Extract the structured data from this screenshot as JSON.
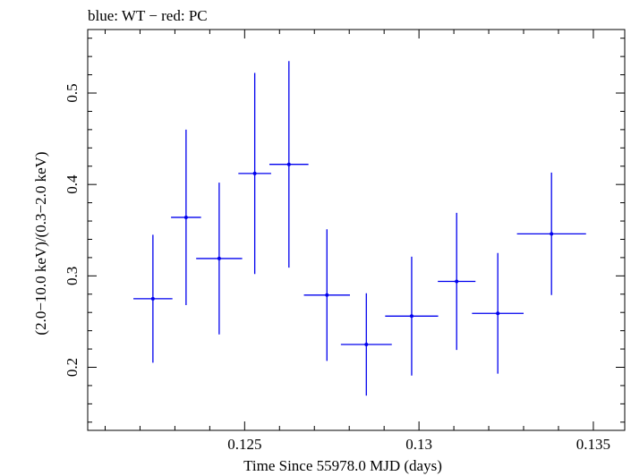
{
  "chart_data": {
    "type": "scatter",
    "title": "blue: WT − red: PC",
    "xlabel": "Time Since 55978.0 MJD (days)",
    "ylabel": "(2.0−10.0 keV)/(0.3−2.0 keV)",
    "xlim": [
      0.1205,
      0.1359
    ],
    "ylim": [
      0.131,
      0.5695
    ],
    "x_ticks": [
      0.125,
      0.13,
      0.135
    ],
    "x_tick_labels": [
      "0.125",
      "0.13",
      "0.135"
    ],
    "y_ticks": [
      0.2,
      0.3,
      0.4,
      0.5
    ],
    "y_tick_labels": [
      "0.2",
      "0.3",
      "0.4",
      "0.5"
    ],
    "grid": false,
    "series": [
      {
        "color": "#0000ee",
        "points": [
          {
            "x": 0.12237,
            "xerr": 0.00056,
            "y": 0.275,
            "yerr_low": 0.07,
            "yerr_high": 0.07
          },
          {
            "x": 0.12332,
            "xerr": 0.00043,
            "y": 0.364,
            "yerr_low": 0.096,
            "yerr_high": 0.096
          },
          {
            "x": 0.12427,
            "xerr": 0.00066,
            "y": 0.319,
            "yerr_low": 0.083,
            "yerr_high": 0.083
          },
          {
            "x": 0.12529,
            "xerr": 0.00047,
            "y": 0.412,
            "yerr_low": 0.11,
            "yerr_high": 0.11
          },
          {
            "x": 0.12627,
            "xerr": 0.00056,
            "y": 0.422,
            "yerr_low": 0.113,
            "yerr_high": 0.113
          },
          {
            "x": 0.12736,
            "xerr": 0.00066,
            "y": 0.279,
            "yerr_low": 0.072,
            "yerr_high": 0.072
          },
          {
            "x": 0.12849,
            "xerr": 0.00073,
            "y": 0.225,
            "yerr_low": 0.056,
            "yerr_high": 0.056
          },
          {
            "x": 0.12979,
            "xerr": 0.00076,
            "y": 0.256,
            "yerr_low": 0.065,
            "yerr_high": 0.065
          },
          {
            "x": 0.13108,
            "xerr": 0.00054,
            "y": 0.294,
            "yerr_low": 0.075,
            "yerr_high": 0.075
          },
          {
            "x": 0.13226,
            "xerr": 0.00074,
            "y": 0.259,
            "yerr_low": 0.066,
            "yerr_high": 0.066
          },
          {
            "x": 0.1338,
            "xerr": 0.00099,
            "y": 0.346,
            "yerr_low": 0.067,
            "yerr_high": 0.067
          }
        ]
      }
    ]
  }
}
